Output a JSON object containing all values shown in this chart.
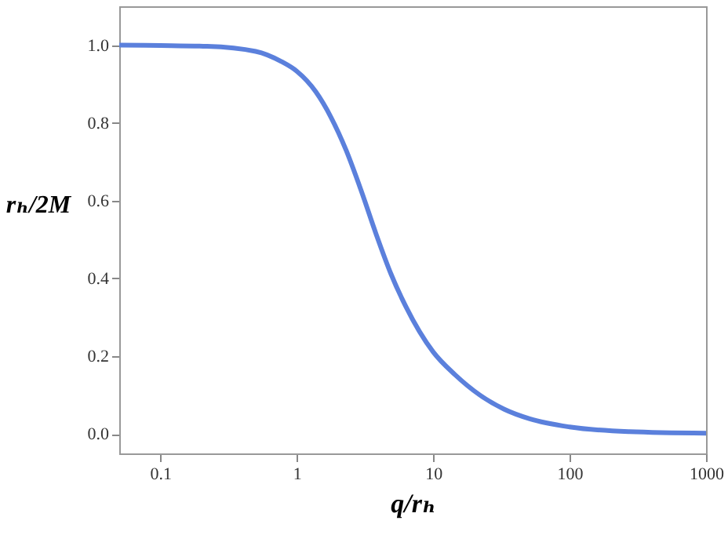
{
  "chart_data": {
    "type": "line",
    "xlabel": "q/rₕ",
    "ylabel": "rₕ/2M",
    "log": "x",
    "grid": false,
    "x": [
      0.05,
      0.1,
      0.22,
      0.5,
      0.77,
      1,
      1.38,
      1.78,
      2.3,
      2.96,
      3.8,
      4.9,
      6.3,
      10,
      14.5,
      22,
      33,
      51,
      100,
      275,
      1000
    ],
    "series": [
      {
        "color": "#5b80dc",
        "values": [
          1.0,
          0.999,
          0.997,
          0.984,
          0.958,
          0.933,
          0.88,
          0.815,
          0.73,
          0.627,
          0.516,
          0.412,
          0.328,
          0.211,
          0.152,
          0.1,
          0.064,
          0.039,
          0.018,
          0.006,
          0.002
        ]
      }
    ],
    "xlim": [
      0.05,
      1000
    ],
    "xticks": [
      0.1,
      1,
      10,
      100,
      1000
    ],
    "ylim": [
      -0.05,
      1.1
    ],
    "yticks": [
      {
        "value": 0,
        "label": "0.0"
      },
      {
        "value": 0.2,
        "label": "0.2"
      },
      {
        "value": 0.4,
        "label": "0.4"
      },
      {
        "value": 0.6,
        "label": "0.6"
      },
      {
        "value": 0.8,
        "label": "0.8"
      },
      {
        "value": 1,
        "label": "1.0"
      }
    ]
  }
}
